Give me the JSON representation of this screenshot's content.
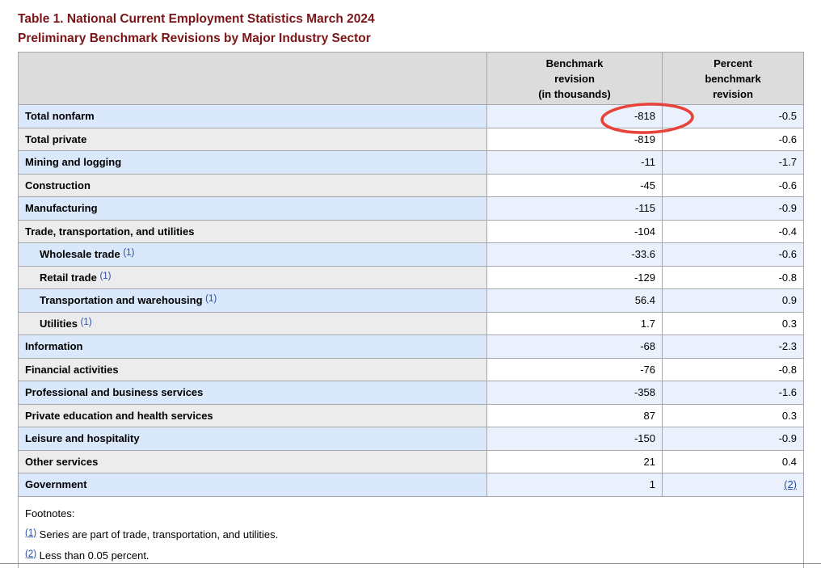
{
  "title": {
    "line1": "Table 1. National Current Employment Statistics March 2024",
    "line2": "Preliminary Benchmark Revisions by Major Industry Sector"
  },
  "table": {
    "header": {
      "label_col": "",
      "benchmark_lines": [
        "Benchmark",
        "revision",
        "(in thousands)"
      ],
      "percent_lines": [
        "Percent",
        "benchmark",
        "revision"
      ]
    },
    "rows": [
      {
        "label": "Total nonfarm",
        "indent": false,
        "footnote": "",
        "benchmark": "-818",
        "percent": "-0.5",
        "percent_is_link": false,
        "annotated": true
      },
      {
        "label": "Total private",
        "indent": false,
        "footnote": "",
        "benchmark": "-819",
        "percent": "-0.6",
        "percent_is_link": false,
        "annotated": false
      },
      {
        "label": "Mining and logging",
        "indent": false,
        "footnote": "",
        "benchmark": "-11",
        "percent": "-1.7",
        "percent_is_link": false,
        "annotated": false
      },
      {
        "label": "Construction",
        "indent": false,
        "footnote": "",
        "benchmark": "-45",
        "percent": "-0.6",
        "percent_is_link": false,
        "annotated": false
      },
      {
        "label": "Manufacturing",
        "indent": false,
        "footnote": "",
        "benchmark": "-115",
        "percent": "-0.9",
        "percent_is_link": false,
        "annotated": false
      },
      {
        "label": "Trade, transportation, and utilities",
        "indent": false,
        "footnote": "",
        "benchmark": "-104",
        "percent": "-0.4",
        "percent_is_link": false,
        "annotated": false
      },
      {
        "label": "Wholesale trade",
        "indent": true,
        "footnote": "(1)",
        "benchmark": "-33.6",
        "percent": "-0.6",
        "percent_is_link": false,
        "annotated": false
      },
      {
        "label": "Retail trade",
        "indent": true,
        "footnote": "(1)",
        "benchmark": "-129",
        "percent": "-0.8",
        "percent_is_link": false,
        "annotated": false
      },
      {
        "label": "Transportation and warehousing",
        "indent": true,
        "footnote": "(1)",
        "benchmark": "56.4",
        "percent": "0.9",
        "percent_is_link": false,
        "annotated": false
      },
      {
        "label": "Utilities",
        "indent": true,
        "footnote": "(1)",
        "benchmark": "1.7",
        "percent": "0.3",
        "percent_is_link": false,
        "annotated": false
      },
      {
        "label": "Information",
        "indent": false,
        "footnote": "",
        "benchmark": "-68",
        "percent": "-2.3",
        "percent_is_link": false,
        "annotated": false
      },
      {
        "label": "Financial activities",
        "indent": false,
        "footnote": "",
        "benchmark": "-76",
        "percent": "-0.8",
        "percent_is_link": false,
        "annotated": false
      },
      {
        "label": "Professional and business services",
        "indent": false,
        "footnote": "",
        "benchmark": "-358",
        "percent": "-1.6",
        "percent_is_link": false,
        "annotated": false
      },
      {
        "label": "Private education and health services",
        "indent": false,
        "footnote": "",
        "benchmark": "87",
        "percent": "0.3",
        "percent_is_link": false,
        "annotated": false
      },
      {
        "label": "Leisure and hospitality",
        "indent": false,
        "footnote": "",
        "benchmark": "-150",
        "percent": "-0.9",
        "percent_is_link": false,
        "annotated": false
      },
      {
        "label": "Other services",
        "indent": false,
        "footnote": "",
        "benchmark": "21",
        "percent": "0.4",
        "percent_is_link": false,
        "annotated": false
      },
      {
        "label": "Government",
        "indent": false,
        "footnote": "",
        "benchmark": "1",
        "percent": "(2)",
        "percent_is_link": true,
        "annotated": false
      }
    ]
  },
  "footnotes": {
    "heading": "Footnotes:",
    "items": [
      {
        "marker": "(1)",
        "text": "Series are part of trade, transportation, and utilities."
      },
      {
        "marker": "(2)",
        "text": "Less than 0.05 percent."
      }
    ]
  },
  "annotation": {
    "shape": "ellipse",
    "color": "#e8433a",
    "circled_value": "-818",
    "circled_row": "Total nonfarm"
  },
  "colors": {
    "title_text": "#7b1517",
    "header_bg": "#dcdcdc",
    "row_blue_label": "#d9e8fb",
    "row_blue_data": "#eaf1fd",
    "row_gray_label": "#ececec",
    "row_gray_data": "#ffffff",
    "border": "#a6a6ad",
    "link": "#274ba2"
  }
}
